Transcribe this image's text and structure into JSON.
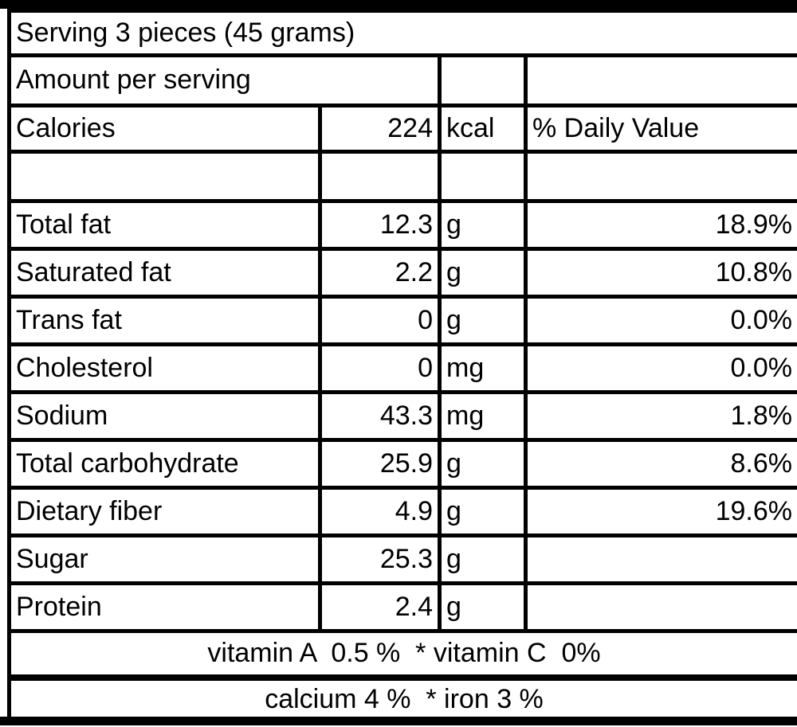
{
  "colors": {
    "border": "#000000",
    "background": "#ffffff",
    "text": "#000000"
  },
  "table": {
    "serving": "Serving 3 pieces (45 grams)",
    "amount_header": "Amount per serving",
    "calories": {
      "label": "Calories",
      "value": "224",
      "unit": "kcal",
      "dv_header": "% Daily Value"
    },
    "nutrients": [
      {
        "label": "Total fat",
        "value": "12.3",
        "unit": "g",
        "dv": "18.9%"
      },
      {
        "label": "Saturated fat",
        "value": "2.2",
        "unit": "g",
        "dv": "10.8%"
      },
      {
        "label": "Trans fat",
        "value": "0",
        "unit": "g",
        "dv": "0.0%"
      },
      {
        "label": "Cholesterol",
        "value": "0",
        "unit": "mg",
        "dv": "0.0%"
      },
      {
        "label": "Sodium",
        "value": "43.3",
        "unit": "mg",
        "dv": "1.8%"
      },
      {
        "label": "Total carbohydrate",
        "value": "25.9",
        "unit": "g",
        "dv": "8.6%"
      },
      {
        "label": "Dietary fiber",
        "value": "4.9",
        "unit": "g",
        "dv": "19.6%"
      },
      {
        "label": "Sugar",
        "value": "25.3",
        "unit": "g",
        "dv": ""
      },
      {
        "label": "Protein",
        "value": "2.4",
        "unit": "g",
        "dv": ""
      }
    ],
    "footer_lines": [
      "vitamin A  0.5 %  * vitamin C  0%",
      "calcium 4 %  * iron 3 %"
    ]
  }
}
